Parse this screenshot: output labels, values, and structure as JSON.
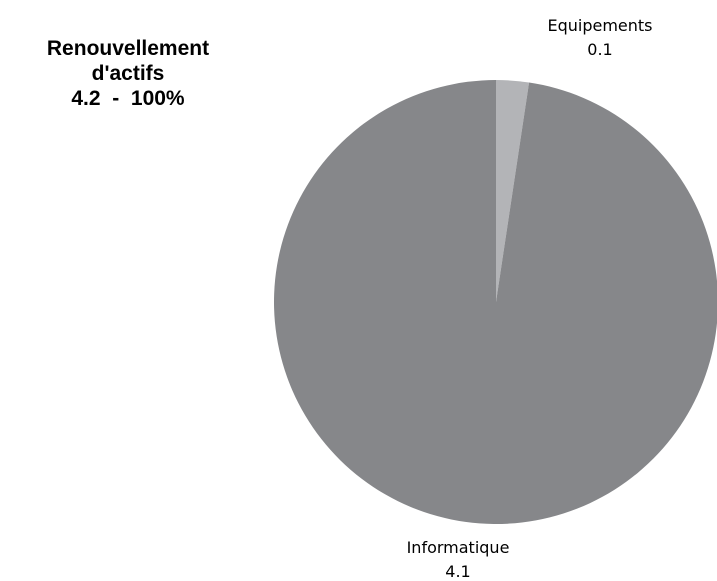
{
  "chart_data": {
    "type": "pie",
    "title_lines": [
      "Renouvellement",
      "d'actifs",
      "4.2  -  100%"
    ],
    "total": 4.2,
    "total_percent": "100%",
    "slices": [
      {
        "label": "Equipements",
        "value": 0.1,
        "value_label": "0.1",
        "color": "#b3b4b7"
      },
      {
        "label": "Informatique",
        "value": 4.1,
        "value_label": "4.1",
        "color": "#86878a"
      }
    ],
    "legend": "none"
  }
}
